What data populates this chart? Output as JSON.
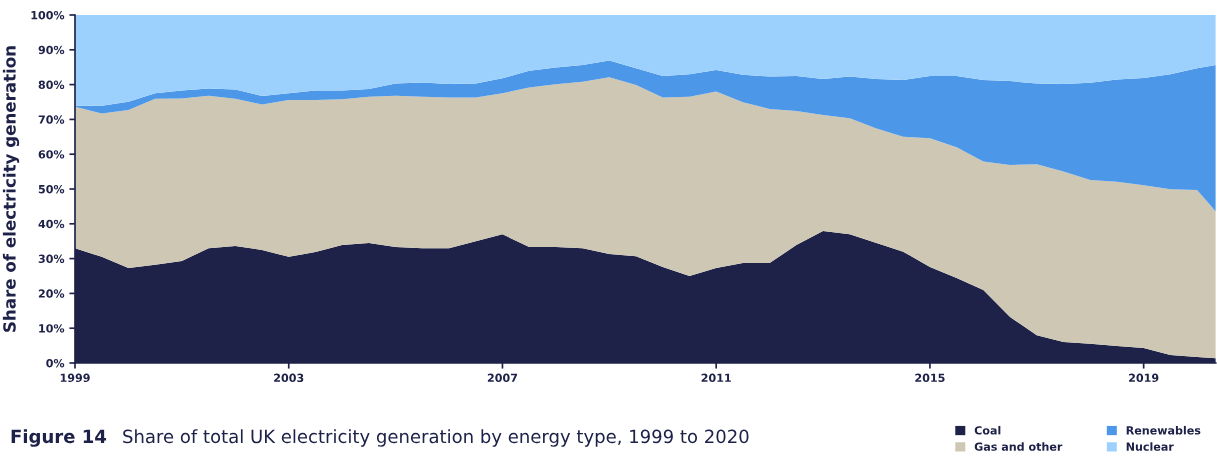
{
  "chart_data": {
    "type": "area",
    "stacked": true,
    "title": "Figure 14",
    "subtitle": "Share of total UK electricity generation by energy type, 1999 to 2020",
    "ylabel": "Share of electricity generation",
    "x": [
      1999,
      1999.5,
      2000,
      2000.5,
      2001,
      2001.5,
      2002,
      2002.5,
      2003,
      2003.5,
      2004,
      2004.5,
      2005,
      2005.5,
      2006,
      2006.5,
      2007,
      2007.5,
      2008,
      2008.5,
      2009,
      2009.5,
      2010,
      2010.5,
      2011,
      2011.5,
      2012,
      2012.5,
      2013,
      2013.5,
      2014,
      2014.5,
      2015,
      2015.5,
      2016,
      2016.5,
      2017,
      2017.5,
      2018,
      2018.5,
      2019,
      2019.5,
      2020,
      2020.35
    ],
    "series": [
      {
        "name": "Coal",
        "color": "#1e2248",
        "values": [
          33.0,
          30.5,
          27.3,
          28.2,
          29.3,
          33.0,
          33.6,
          32.5,
          30.5,
          31.9,
          33.9,
          34.5,
          33.3,
          33.0,
          33.0,
          35.0,
          37.0,
          33.3,
          33.3,
          33.0,
          31.3,
          30.7,
          27.6,
          25.0,
          27.3,
          28.7,
          28.7,
          33.9,
          37.9,
          37.0,
          34.5,
          32.0,
          27.6,
          24.4,
          21.0,
          13.2,
          8.0,
          6.0,
          5.5,
          4.9,
          4.3,
          2.3,
          1.7,
          1.4
        ]
      },
      {
        "name": "Gas and other",
        "color": "#cec7b3",
        "values": [
          40.6,
          41.2,
          45.4,
          47.7,
          46.7,
          43.8,
          42.3,
          41.8,
          45.1,
          43.7,
          41.9,
          42.0,
          43.5,
          43.5,
          43.3,
          41.3,
          40.5,
          45.9,
          46.8,
          47.8,
          50.8,
          49.2,
          48.7,
          51.5,
          50.7,
          46.2,
          44.3,
          38.5,
          33.4,
          33.3,
          32.9,
          33.0,
          37.0,
          37.6,
          36.9,
          43.7,
          49.1,
          49.0,
          47.1,
          47.2,
          46.8,
          47.6,
          48.0,
          42.1
        ]
      },
      {
        "name": "Renewables",
        "color": "#4d97e9",
        "values": [
          0.3,
          2.2,
          2.4,
          1.6,
          2.3,
          2.1,
          2.7,
          2.4,
          1.9,
          2.7,
          2.5,
          2.2,
          3.5,
          4.1,
          3.9,
          4.0,
          4.3,
          4.8,
          4.8,
          4.8,
          4.8,
          4.8,
          6.2,
          6.5,
          6.2,
          7.9,
          9.3,
          10.1,
          10.3,
          12.0,
          14.2,
          16.3,
          17.9,
          20.5,
          23.4,
          24.1,
          23.2,
          25.2,
          27.9,
          29.4,
          30.8,
          33.1,
          35.0,
          42.1
        ]
      },
      {
        "name": "Nuclear",
        "color": "#9dd1fd",
        "values": [
          26.1,
          26.1,
          24.9,
          22.5,
          21.7,
          21.1,
          21.4,
          23.3,
          22.5,
          21.7,
          21.7,
          21.3,
          19.7,
          19.4,
          19.8,
          19.7,
          18.2,
          16.0,
          15.1,
          14.4,
          13.1,
          15.3,
          17.5,
          17.0,
          15.8,
          17.2,
          17.7,
          17.5,
          18.4,
          17.7,
          18.4,
          18.7,
          17.5,
          17.5,
          18.7,
          19.0,
          19.7,
          19.8,
          19.5,
          18.5,
          18.1,
          17.0,
          15.3,
          14.4
        ]
      }
    ],
    "xlim": [
      1999,
      2020.35
    ],
    "xticks": [
      1999,
      2003,
      2007,
      2011,
      2015,
      2019
    ],
    "ylim": [
      0,
      100
    ],
    "yticks": [
      {
        "value": 0,
        "label": "0%"
      },
      {
        "value": 10,
        "label": "10%"
      },
      {
        "value": 20,
        "label": "20%"
      },
      {
        "value": 30,
        "label": "30%"
      },
      {
        "value": 40,
        "label": "40%"
      },
      {
        "value": 50,
        "label": "50%"
      },
      {
        "value": 60,
        "label": "60%"
      },
      {
        "value": 70,
        "label": "70%"
      },
      {
        "value": 80,
        "label": "80%"
      },
      {
        "value": 90,
        "label": "90%"
      },
      {
        "value": 100,
        "label": "100%"
      }
    ],
    "legend": "bottom right"
  }
}
